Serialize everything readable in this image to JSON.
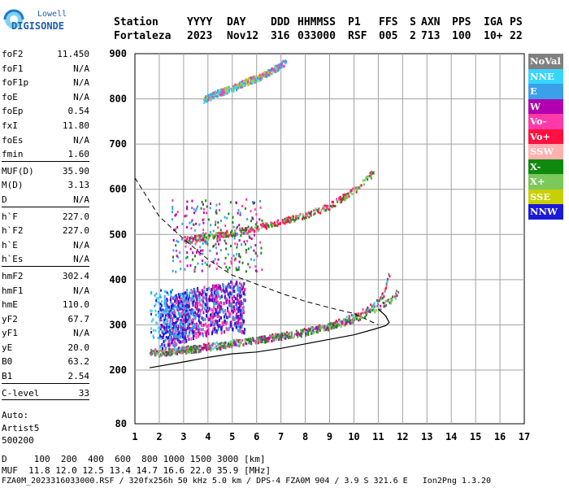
{
  "logo": {
    "line1": "Lowell",
    "line2": "DIGISONDE"
  },
  "header": {
    "row1": [
      "Station",
      "YYYY",
      "DAY",
      "DDD",
      "HHMMSS",
      "P1",
      "FFS",
      "S",
      "AXN",
      "PPS",
      "IGA",
      "PS"
    ],
    "row2": [
      "Fortaleza",
      "2023",
      "Nov12",
      "316",
      "033000",
      "RSF",
      "005",
      "2",
      "713",
      "100",
      "10+",
      "22"
    ]
  },
  "params": {
    "group1": [
      {
        "k": "foF2",
        "v": "11.450"
      },
      {
        "k": "foF1",
        "v": "N/A"
      },
      {
        "k": "foF1p",
        "v": "N/A"
      },
      {
        "k": "foE",
        "v": "N/A"
      },
      {
        "k": "foEp",
        "v": "0.54"
      },
      {
        "k": "fxI",
        "v": "11.80"
      },
      {
        "k": "foEs",
        "v": "N/A"
      },
      {
        "k": "fmin",
        "v": "1.60"
      }
    ],
    "group2": [
      {
        "k": "MUF(D)",
        "v": "35.90"
      },
      {
        "k": "M(D)",
        "v": "3.13"
      },
      {
        "k": "D",
        "v": "N/A"
      }
    ],
    "group3": [
      {
        "k": "h`F",
        "v": "227.0"
      },
      {
        "k": "h`F2",
        "v": "227.0"
      },
      {
        "k": "h`E",
        "v": "N/A"
      },
      {
        "k": "h`Es",
        "v": "N/A"
      }
    ],
    "group4": [
      {
        "k": "hmF2",
        "v": "302.4"
      },
      {
        "k": "hmF1",
        "v": "N/A"
      },
      {
        "k": "hmE",
        "v": "110.0"
      },
      {
        "k": "yF2",
        "v": "67.7"
      },
      {
        "k": "yF1",
        "v": "N/A"
      },
      {
        "k": "yE",
        "v": "20.0"
      },
      {
        "k": "B0",
        "v": "63.2"
      },
      {
        "k": "B1",
        "v": "2.54"
      }
    ],
    "group5": [
      {
        "k": "C-level",
        "v": "33"
      }
    ],
    "auto": [
      "Auto:",
      "Artist5",
      "500200"
    ]
  },
  "legend": [
    {
      "label": "NoVal",
      "color": "#808080"
    },
    {
      "label": "NNE",
      "color": "#36d6ff"
    },
    {
      "label": "E",
      "color": "#3aa0ea"
    },
    {
      "label": "W",
      "color": "#b000b0"
    },
    {
      "label": "Vo-",
      "color": "#ff3aa8"
    },
    {
      "label": "Vo+",
      "color": "#ff1040"
    },
    {
      "label": "SSW",
      "color": "#ffb0b0"
    },
    {
      "label": "X-",
      "color": "#0f8a0f"
    },
    {
      "label": "X+",
      "color": "#7cc85a"
    },
    {
      "label": "SSE",
      "color": "#c8d000"
    },
    {
      "label": "NNW",
      "color": "#1a1ad8"
    }
  ],
  "footer": {
    "line1": "D     100  200  400  600  800 1000 1500 3000 [km]",
    "line2": "MUF  11.8 12.0 12.5 13.4 14.7 16.6 22.0 35.9 [MHz]",
    "line3": "FZA0M_2023316033000.RSF / 320fx256h 50 kHz 5.0 km / DPS-4 FZA0M 904 / 3.9 S 321.6 E   Ion2Png 1.3.20"
  },
  "chart_data": {
    "type": "scatter",
    "xlim": [
      1,
      17
    ],
    "ylim": [
      80,
      900
    ],
    "x_ticks": [
      1,
      2,
      3,
      4,
      5,
      6,
      7,
      8,
      9,
      10,
      11,
      12,
      13,
      14,
      15,
      16,
      17
    ],
    "y_ticks": [
      80,
      200,
      300,
      400,
      500,
      600,
      700,
      800,
      900
    ],
    "grid": true,
    "legend_placement": "right",
    "traces": [
      {
        "name": "F2 O-trace",
        "color": "#ff1040",
        "x": [
          1.6,
          3,
          4,
          5,
          6,
          7,
          8,
          9,
          10,
          10.8,
          11.2,
          11.45
        ],
        "y": [
          240,
          248,
          255,
          262,
          268,
          278,
          288,
          300,
          320,
          345,
          370,
          420
        ]
      },
      {
        "name": "F2 X-trace",
        "color": "#0f8a0f",
        "x": [
          1.8,
          3,
          4,
          5,
          6,
          7,
          8,
          9,
          10,
          11,
          11.6,
          11.8
        ],
        "y": [
          238,
          246,
          252,
          260,
          268,
          276,
          286,
          298,
          315,
          340,
          360,
          380
        ]
      },
      {
        "name": "2nd hop",
        "color": "#0f8a0f",
        "x": [
          3,
          4,
          5,
          6,
          7,
          8,
          9,
          10,
          10.8
        ],
        "y": [
          490,
          497,
          505,
          517,
          530,
          545,
          565,
          600,
          640
        ]
      },
      {
        "name": "3rd hop",
        "color": "#3aa0ea",
        "x": [
          3.8,
          4.4,
          5,
          5.6,
          6.2,
          6.8,
          7.2
        ],
        "y": [
          800,
          815,
          825,
          840,
          852,
          870,
          885
        ]
      },
      {
        "name": "Spread F",
        "color": "#b000b0",
        "x": [
          2,
          2.5,
          3,
          3.5,
          4,
          4.5,
          5,
          5.5
        ],
        "y": [
          300,
          310,
          320,
          330,
          335,
          340,
          345,
          340
        ]
      }
    ],
    "profile_line": {
      "x": [
        1.6,
        3,
        4,
        5,
        6,
        7,
        8,
        9,
        10,
        10.8,
        11.3,
        11.45,
        11.3,
        11
      ],
      "y": [
        205,
        218,
        228,
        236,
        240,
        248,
        258,
        268,
        278,
        290,
        298,
        305,
        320,
        335
      ]
    },
    "muf_dashed_curve": {
      "x": [
        1,
        2,
        3,
        4,
        5,
        6,
        7,
        8,
        9,
        10,
        11
      ],
      "y": [
        625,
        540,
        490,
        445,
        410,
        390,
        370,
        352,
        338,
        325,
        300
      ]
    }
  }
}
